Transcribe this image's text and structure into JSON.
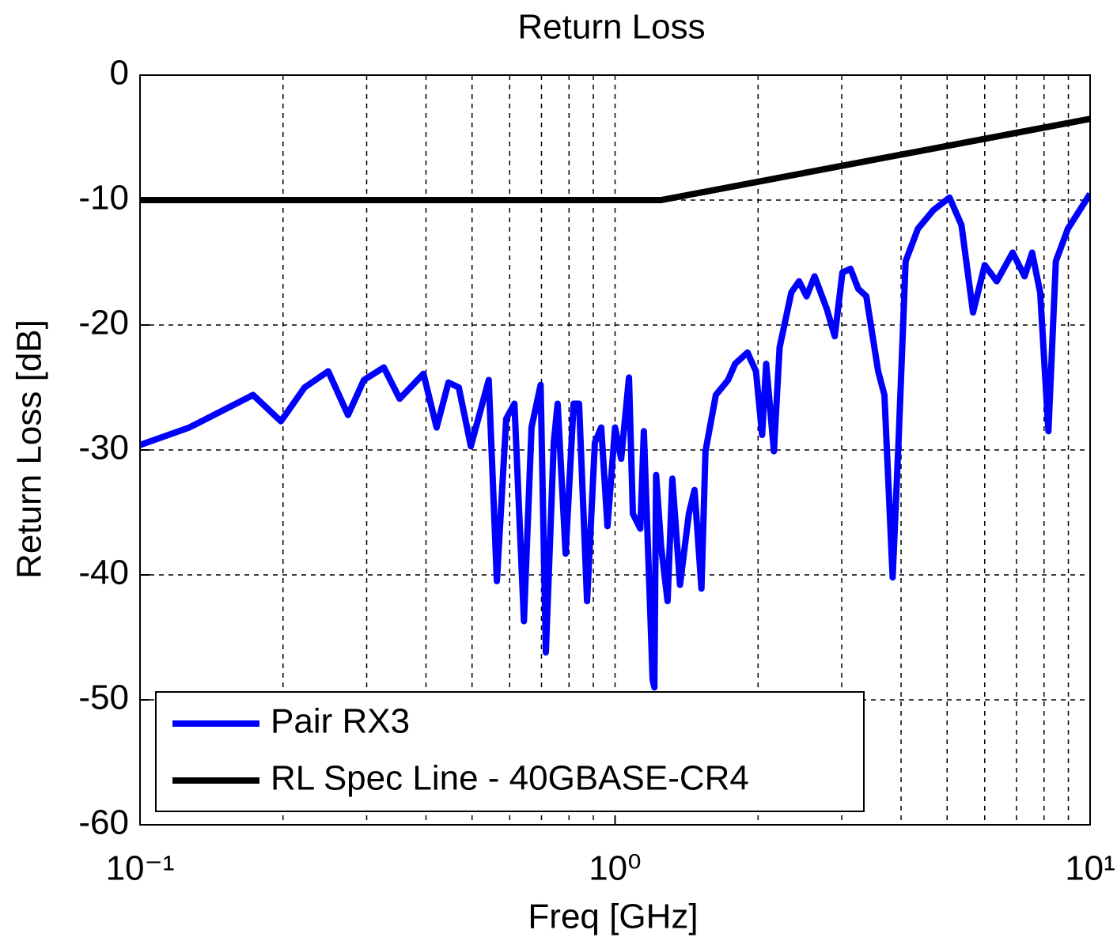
{
  "chart_data": {
    "type": "line",
    "title": "Return Loss",
    "xlabel": "Freq [GHz]",
    "ylabel": "Return Loss [dB]",
    "xscale": "log",
    "grid": true,
    "legend": "lower left",
    "xlim": [
      0.1,
      10
    ],
    "ylim": [
      -60,
      0
    ],
    "xticks": [
      {
        "value": 0.1,
        "label": "10⁻¹"
      },
      {
        "value": 1,
        "label": "10⁰"
      },
      {
        "value": 10,
        "label": "10¹"
      }
    ],
    "xminorticks": [
      0.2,
      0.3,
      0.4,
      0.5,
      0.6,
      0.7,
      0.8,
      0.9,
      2,
      3,
      4,
      5,
      6,
      7,
      8,
      9
    ],
    "yticks": [
      0,
      -10,
      -20,
      -30,
      -40,
      -50,
      -60
    ],
    "series": [
      {
        "name": "Pair RX3",
        "color": "#0000ff",
        "x": [
          0.1,
          0.127,
          0.173,
          0.198,
          0.222,
          0.249,
          0.274,
          0.296,
          0.326,
          0.352,
          0.395,
          0.421,
          0.446,
          0.469,
          0.497,
          0.542,
          0.564,
          0.59,
          0.614,
          0.643,
          0.667,
          0.697,
          0.715,
          0.743,
          0.757,
          0.787,
          0.818,
          0.84,
          0.873,
          0.907,
          0.935,
          0.964,
          1.0,
          1.03,
          1.07,
          1.09,
          1.13,
          1.15,
          1.2,
          1.21,
          1.22,
          1.25,
          1.29,
          1.32,
          1.37,
          1.43,
          1.47,
          1.52,
          1.55,
          1.63,
          1.73,
          1.79,
          1.9,
          1.98,
          2.04,
          2.08,
          2.16,
          2.22,
          2.35,
          2.44,
          2.53,
          2.63,
          2.79,
          2.9,
          3.01,
          3.13,
          3.25,
          3.38,
          3.58,
          3.69,
          3.84,
          3.95,
          4.09,
          4.34,
          4.68,
          5.06,
          5.36,
          5.67,
          6.0,
          6.36,
          6.87,
          7.28,
          7.55,
          7.85,
          8.17,
          8.47,
          8.98,
          10
        ],
        "values": [
          -29.6,
          -28.2,
          -25.6,
          -27.7,
          -25,
          -23.7,
          -27.2,
          -24.4,
          -23.4,
          -25.9,
          -23.9,
          -28.2,
          -24.6,
          -25,
          -29.7,
          -24.4,
          -40.5,
          -27.5,
          -26.3,
          -43.7,
          -28.2,
          -24.8,
          -46.2,
          -29.4,
          -26.3,
          -38.3,
          -26.3,
          -26.3,
          -42.1,
          -29.4,
          -28.2,
          -36.1,
          -28.2,
          -30.7,
          -24.2,
          -35.1,
          -36.3,
          -28.5,
          -48.4,
          -49,
          -32,
          -37.7,
          -42.1,
          -32.3,
          -40.8,
          -35.1,
          -33.2,
          -41.1,
          -30.1,
          -25.6,
          -24.4,
          -23.1,
          -22.2,
          -23.7,
          -28.8,
          -23.1,
          -30.1,
          -21.8,
          -17.4,
          -16.5,
          -17.7,
          -16.1,
          -18.7,
          -20.9,
          -15.8,
          -15.5,
          -17.1,
          -17.7,
          -23.7,
          -25.6,
          -40.2,
          -29.4,
          -14.9,
          -12.3,
          -10.8,
          -9.8,
          -12,
          -19,
          -15.2,
          -16.5,
          -14.2,
          -16.1,
          -14.2,
          -17.4,
          -28.5,
          -14.9,
          -12.3,
          -9.5
        ]
      },
      {
        "name": "RL Spec Line - 40GBASE-CR4",
        "color": "#000000",
        "x": [
          0.1,
          1.25,
          10
        ],
        "values": [
          -10,
          -10,
          -3.5
        ]
      }
    ]
  }
}
